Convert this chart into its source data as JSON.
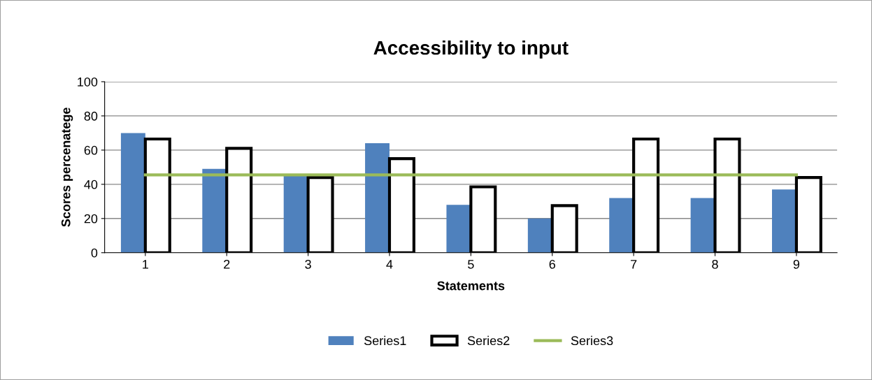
{
  "chart_data": {
    "type": "bar",
    "title": "Accessibility to input",
    "xlabel": "Statements",
    "ylabel": "Scores percenatege",
    "categories": [
      "1",
      "2",
      "3",
      "4",
      "5",
      "6",
      "7",
      "8",
      "9"
    ],
    "series": [
      {
        "name": "Series1",
        "color": "#4f81bd",
        "values": [
          70,
          49,
          46,
          64,
          28,
          20,
          32,
          32,
          37
        ]
      },
      {
        "name": "Series2",
        "color": "#000000",
        "values": [
          66.5,
          61,
          44,
          55,
          38.5,
          27.5,
          66.5,
          66.5,
          44
        ]
      },
      {
        "name": "Series3",
        "type": "line",
        "color": "#9bbb59",
        "values": [
          45.5,
          45.5,
          45.5,
          45.5,
          45.5,
          45.5,
          45.5,
          45.5,
          45.5
        ]
      }
    ],
    "ylim": [
      0,
      100
    ],
    "yticks": [
      0,
      20,
      40,
      60,
      80,
      100
    ],
    "grid": "y",
    "legend": "bottom"
  }
}
